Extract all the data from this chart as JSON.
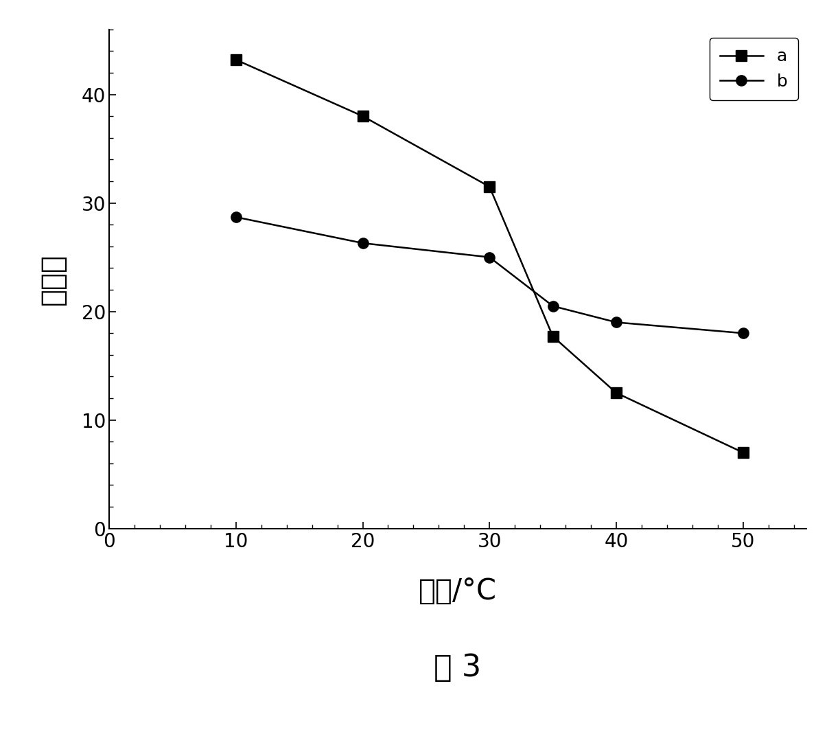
{
  "series_a": {
    "x": [
      10,
      20,
      30,
      35,
      40,
      50
    ],
    "y": [
      43.2,
      38.0,
      31.5,
      17.7,
      12.5,
      7.0
    ],
    "label": "a",
    "marker": "s",
    "color": "#000000"
  },
  "series_b": {
    "x": [
      10,
      20,
      30,
      35,
      40,
      50
    ],
    "y": [
      28.7,
      26.3,
      25.0,
      20.5,
      19.0,
      18.0
    ],
    "label": "b",
    "marker": "o",
    "color": "#000000"
  },
  "xlabel": "温度/°C",
  "ylabel": "溶胀比",
  "figure_label": "图 3",
  "xlim": [
    0,
    55
  ],
  "ylim": [
    0,
    46
  ],
  "xticks": [
    0,
    10,
    20,
    30,
    40,
    50
  ],
  "yticks": [
    0,
    10,
    20,
    30,
    40
  ],
  "figsize": [
    12.24,
    10.69
  ],
  "dpi": 100,
  "background_color": "#ffffff",
  "legend_fontsize": 18,
  "axis_label_fontsize": 30,
  "tick_fontsize": 20,
  "figure_label_fontsize": 32,
  "linewidth": 1.8,
  "markersize": 11
}
